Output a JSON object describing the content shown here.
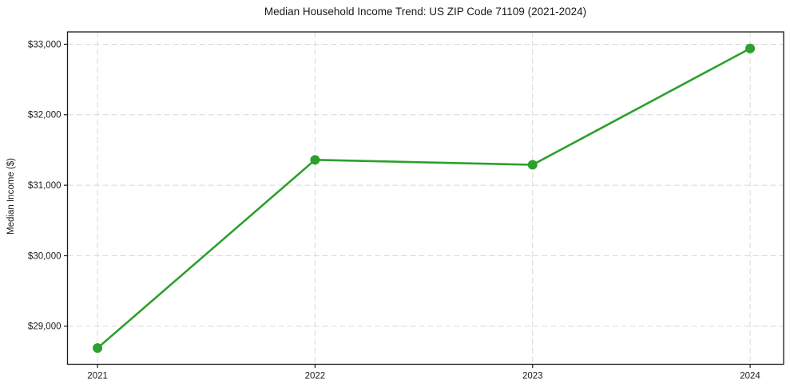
{
  "chart_data": {
    "type": "line",
    "title": "Median Household Income Trend: US ZIP Code 71109 (2021-2024)",
    "xlabel": "",
    "ylabel": "Median Income ($)",
    "x": [
      2021,
      2022,
      2023,
      2024
    ],
    "x_tick_labels": [
      "2021",
      "2022",
      "2023",
      "2024"
    ],
    "series": [
      {
        "name": "Median Household Income",
        "values": [
          28690,
          31360,
          31290,
          32940
        ],
        "color": "#2ca02c",
        "marker": "circle"
      }
    ],
    "y_ticks": [
      29000,
      30000,
      31000,
      32000,
      33000
    ],
    "y_tick_labels": [
      "$29,000",
      "$30,000",
      "$31,000",
      "$32,000",
      "$33,000"
    ],
    "xlim": [
      2020.862,
      2024.154
    ],
    "ylim": [
      28460,
      33175
    ],
    "grid": "both",
    "grid_style": "dashed",
    "legend": "none",
    "colors": {
      "line": "#2ca02c",
      "grid": "#d9d9d9",
      "axis": "#1a1a1a",
      "text": "#1a1a1a",
      "background": "#ffffff"
    }
  }
}
